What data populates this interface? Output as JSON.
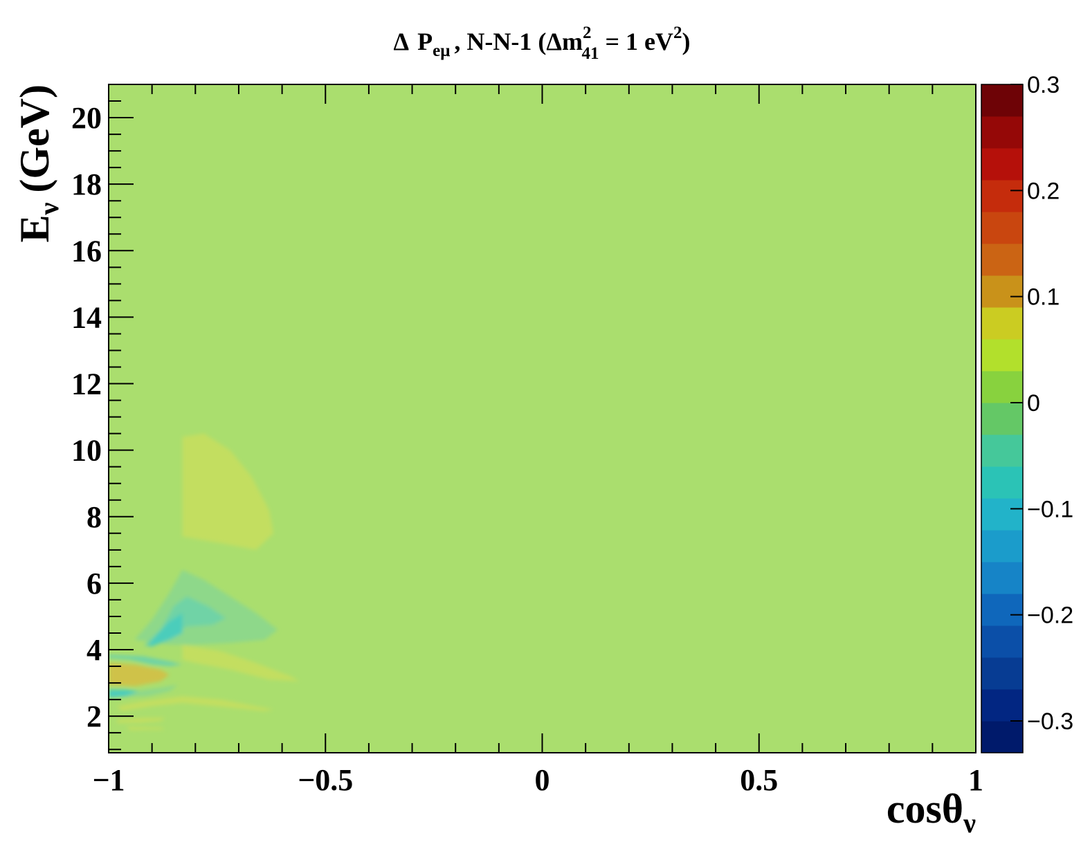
{
  "chart_data": {
    "type": "heatmap",
    "title": {
      "delta": "Δ",
      "p": "P",
      "p_sub": "eμ",
      "mid": ", N-N-1 (Δm",
      "m_sup": "2",
      "m_sub": "41",
      "eq": " = 1 eV",
      "v_sup": "2",
      "close": ")"
    },
    "xlabel": {
      "base": "cosθ",
      "sub": "ν"
    },
    "ylabel": {
      "base": "E",
      "sub": "ν",
      "unit": "(GeV)"
    },
    "xlim": [
      -1,
      1
    ],
    "ylim": [
      0.9,
      21
    ],
    "x_ticks": [
      {
        "value": -1,
        "label": "−1"
      },
      {
        "value": -0.5,
        "label": "−0.5"
      },
      {
        "value": 0,
        "label": "0"
      },
      {
        "value": 0.5,
        "label": "0.5"
      },
      {
        "value": 1,
        "label": "1"
      }
    ],
    "y_ticks": [
      {
        "value": 2,
        "label": "2"
      },
      {
        "value": 4,
        "label": "4"
      },
      {
        "value": 6,
        "label": "6"
      },
      {
        "value": 8,
        "label": "8"
      },
      {
        "value": 10,
        "label": "10"
      },
      {
        "value": 12,
        "label": "12"
      },
      {
        "value": 14,
        "label": "14"
      },
      {
        "value": 16,
        "label": "16"
      },
      {
        "value": 18,
        "label": "18"
      },
      {
        "value": 20,
        "label": "20"
      }
    ],
    "zlim": [
      -0.33,
      0.3
    ],
    "z_ticks": [
      {
        "value": 0.3,
        "label": "0.3"
      },
      {
        "value": 0.2,
        "label": "0.2"
      },
      {
        "value": 0.1,
        "label": "0.1"
      },
      {
        "value": 0,
        "label": "0"
      },
      {
        "value": -0.1,
        "label": "−0.1"
      },
      {
        "value": -0.2,
        "label": "−0.2"
      },
      {
        "value": -0.3,
        "label": "−0.3"
      }
    ],
    "background_value": 0.01,
    "colorbar_colors": [
      "#001a6b",
      "#022682",
      "#073c93",
      "#0b4fa8",
      "#0f67bb",
      "#1684c7",
      "#1b9ccb",
      "#22b3c9",
      "#2bc3b6",
      "#45c89a",
      "#64c866",
      "#88d23e",
      "#b2e02c",
      "#cbcc22",
      "#c9921a",
      "#cb6414",
      "#c9460f",
      "#c52c0c",
      "#b5100a",
      "#950807",
      "#6e0306"
    ],
    "background_color": "#aade6e",
    "regions": [
      {
        "value": 0.03,
        "color": "#c3de60",
        "points": [
          [
            -0.83,
            10.4
          ],
          [
            -0.78,
            10.5
          ],
          [
            -0.72,
            10.0
          ],
          [
            -0.67,
            9.2
          ],
          [
            -0.63,
            8.2
          ],
          [
            -0.62,
            7.5
          ],
          [
            -0.66,
            7.0
          ],
          [
            -0.74,
            7.2
          ],
          [
            -0.83,
            7.4
          ]
        ]
      },
      {
        "value": -0.03,
        "color": "#8ed88a",
        "points": [
          [
            -0.94,
            4.3
          ],
          [
            -0.9,
            4.9
          ],
          [
            -0.86,
            5.7
          ],
          [
            -0.83,
            6.4
          ],
          [
            -0.78,
            6.1
          ],
          [
            -0.72,
            5.6
          ],
          [
            -0.66,
            5.1
          ],
          [
            -0.61,
            4.6
          ],
          [
            -0.64,
            4.3
          ],
          [
            -0.72,
            4.2
          ],
          [
            -0.8,
            4.15
          ],
          [
            -0.86,
            4.15
          ]
        ]
      },
      {
        "value": -0.05,
        "color": "#6fd3a6",
        "points": [
          [
            -0.92,
            4.1
          ],
          [
            -0.88,
            4.6
          ],
          [
            -0.85,
            5.3
          ],
          [
            -0.82,
            5.6
          ],
          [
            -0.77,
            5.3
          ],
          [
            -0.73,
            4.95
          ],
          [
            -0.76,
            4.75
          ],
          [
            -0.82,
            4.7
          ],
          [
            -0.86,
            4.4
          ],
          [
            -0.9,
            4.15
          ]
        ]
      },
      {
        "value": -0.08,
        "color": "#4ccdbb",
        "points": [
          [
            -0.91,
            4.1
          ],
          [
            -0.89,
            4.45
          ],
          [
            -0.86,
            4.85
          ],
          [
            -0.83,
            5.1
          ],
          [
            -0.83,
            4.5
          ],
          [
            -0.86,
            4.3
          ],
          [
            -0.9,
            4.1
          ]
        ]
      },
      {
        "value": 0.03,
        "color": "#c3de60",
        "points": [
          [
            -0.83,
            4.15
          ],
          [
            -0.74,
            3.95
          ],
          [
            -0.66,
            3.6
          ],
          [
            -0.58,
            3.2
          ],
          [
            -0.56,
            3.05
          ],
          [
            -0.63,
            3.1
          ],
          [
            -0.72,
            3.4
          ],
          [
            -0.8,
            3.6
          ],
          [
            -0.83,
            3.7
          ]
        ]
      },
      {
        "value": -0.05,
        "color": "#6fd3a6",
        "points": [
          [
            -1.0,
            3.75
          ],
          [
            -0.95,
            3.7
          ],
          [
            -0.9,
            3.55
          ],
          [
            -0.86,
            3.5
          ],
          [
            -0.83,
            3.55
          ],
          [
            -0.86,
            3.65
          ],
          [
            -0.92,
            3.8
          ],
          [
            -1.0,
            3.85
          ]
        ]
      },
      {
        "value": 0.1,
        "color": "#d5a044",
        "points": [
          [
            -1.0,
            3.05
          ],
          [
            -0.96,
            3.0
          ],
          [
            -0.92,
            3.1
          ],
          [
            -0.9,
            3.2
          ],
          [
            -0.92,
            3.35
          ],
          [
            -0.97,
            3.45
          ],
          [
            -1.0,
            3.5
          ]
        ]
      },
      {
        "value": 0.06,
        "color": "#cfc24a",
        "points": [
          [
            -1.0,
            2.95
          ],
          [
            -0.94,
            2.9
          ],
          [
            -0.88,
            3.05
          ],
          [
            -0.86,
            3.25
          ],
          [
            -0.88,
            3.4
          ],
          [
            -0.94,
            3.55
          ],
          [
            -1.0,
            3.6
          ]
        ]
      },
      {
        "value": -0.03,
        "color": "#8ed88a",
        "points": [
          [
            -1.0,
            2.7
          ],
          [
            -0.94,
            2.75
          ],
          [
            -0.88,
            2.85
          ],
          [
            -0.84,
            2.95
          ],
          [
            -0.86,
            2.75
          ],
          [
            -0.91,
            2.6
          ],
          [
            -1.0,
            2.55
          ]
        ]
      },
      {
        "value": -0.08,
        "color": "#4ccdbb",
        "points": [
          [
            -1.0,
            2.55
          ],
          [
            -0.96,
            2.6
          ],
          [
            -0.93,
            2.75
          ],
          [
            -0.96,
            2.8
          ],
          [
            -1.0,
            2.8
          ]
        ]
      },
      {
        "value": 0.03,
        "color": "#c3de60",
        "points": [
          [
            -0.98,
            2.3
          ],
          [
            -0.92,
            2.45
          ],
          [
            -0.86,
            2.55
          ],
          [
            -0.83,
            2.6
          ],
          [
            -0.74,
            2.5
          ],
          [
            -0.62,
            2.2
          ],
          [
            -0.64,
            2.15
          ],
          [
            -0.75,
            2.3
          ],
          [
            -0.83,
            2.4
          ],
          [
            -0.9,
            2.3
          ],
          [
            -0.97,
            2.15
          ]
        ]
      },
      {
        "value": 0.03,
        "color": "#c3de60",
        "points": [
          [
            -0.98,
            1.9
          ],
          [
            -0.92,
            1.95
          ],
          [
            -0.87,
            1.95
          ],
          [
            -0.88,
            1.85
          ],
          [
            -0.93,
            1.8
          ],
          [
            -0.98,
            1.8
          ]
        ]
      },
      {
        "value": 0.03,
        "color": "#c3de60",
        "points": [
          [
            -0.96,
            1.68
          ],
          [
            -0.88,
            1.66
          ],
          [
            -0.87,
            1.6
          ],
          [
            -0.95,
            1.58
          ]
        ]
      }
    ]
  }
}
